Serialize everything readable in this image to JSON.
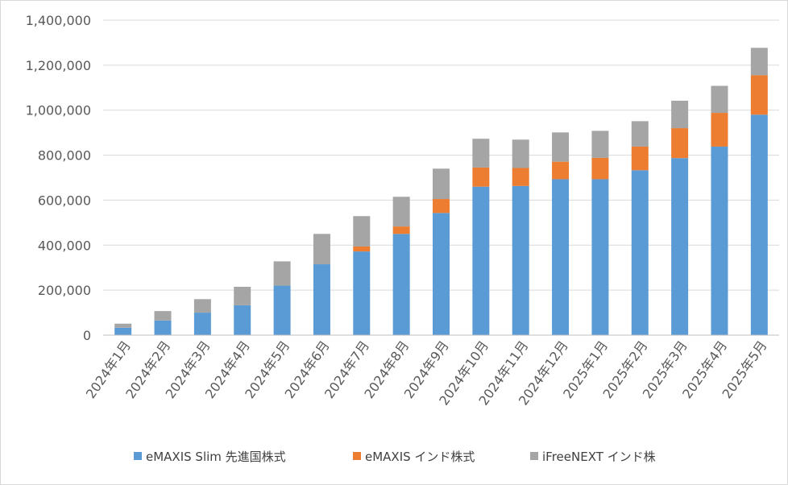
{
  "chart_data": {
    "type": "bar",
    "stacked": true,
    "title": "",
    "xlabel": "",
    "ylabel": "",
    "ylim": [
      0,
      1400000
    ],
    "y_ticks": [
      0,
      200000,
      400000,
      600000,
      800000,
      1000000,
      1200000,
      1400000
    ],
    "y_tick_labels": [
      "0",
      "200,000",
      "400,000",
      "600,000",
      "800,000",
      "1,000,000",
      "1,200,000",
      "1,400,000"
    ],
    "grid": true,
    "legend_position": "bottom",
    "categories": [
      "2024年1月",
      "2024年2月",
      "2024年3月",
      "2024年4月",
      "2024年5月",
      "2024年6月",
      "2024年7月",
      "2024年8月",
      "2024年9月",
      "2024年10月",
      "2024年11月",
      "2024年12月",
      "2025年1月",
      "2025年2月",
      "2025年3月",
      "2025年4月",
      "2025年5月"
    ],
    "series": [
      {
        "name": "eMAXIS Slim 先進国株式",
        "color": "#5b9bd5",
        "values": [
          33000,
          65000,
          100000,
          133000,
          220000,
          315000,
          372000,
          450000,
          543000,
          660000,
          663000,
          693000,
          693000,
          733000,
          787000,
          838000,
          980000
        ]
      },
      {
        "name": "eMAXIS インド株式",
        "color": "#ed7d31",
        "values": [
          0,
          0,
          0,
          0,
          0,
          0,
          22000,
          33000,
          62000,
          85000,
          80000,
          78000,
          95000,
          105000,
          133000,
          150000,
          175000
        ]
      },
      {
        "name": "iFreeNEXT インド株",
        "color": "#a5a5a5",
        "values": [
          18000,
          42000,
          60000,
          82000,
          108000,
          135000,
          135000,
          132000,
          135000,
          128000,
          126000,
          130000,
          120000,
          113000,
          122000,
          120000,
          122000
        ]
      }
    ]
  }
}
